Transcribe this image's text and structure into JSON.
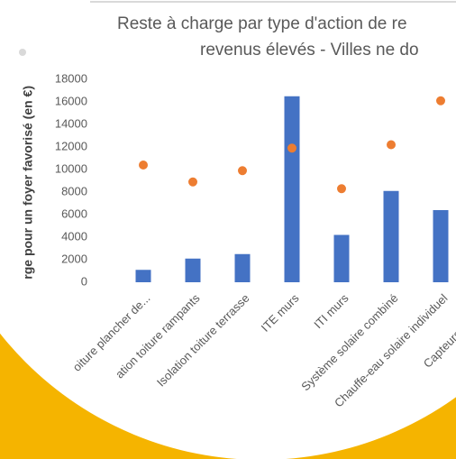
{
  "chart_data": {
    "type": "bar",
    "title_lines": [
      "Reste à charge par type d'action de re",
      "revenus élevés - Villes ne do"
    ],
    "y_label": "rge pour un foyer favorisé  (en €)",
    "categories": [
      "oiture plancher de...",
      "ation toiture rampants",
      "Isolation toiture terrasse",
      "ITE murs",
      "ITI murs",
      "Système solaire combiné",
      "Chauffe-eau solaire individuel",
      "Capteurs photovolt"
    ],
    "series": [
      {
        "style": "bar",
        "color": "#4472c4",
        "values": [
          1100,
          2100,
          2500,
          16500,
          4200,
          8100,
          6400,
          null
        ]
      },
      {
        "style": "dot",
        "color": "#ed7d31",
        "values": [
          10400,
          8900,
          9900,
          11900,
          8300,
          12200,
          16100,
          null
        ]
      }
    ],
    "ylim": [
      0,
      18000
    ],
    "yticks": [
      0,
      2000,
      4000,
      6000,
      8000,
      10000,
      12000,
      14000,
      16000,
      18000
    ]
  }
}
